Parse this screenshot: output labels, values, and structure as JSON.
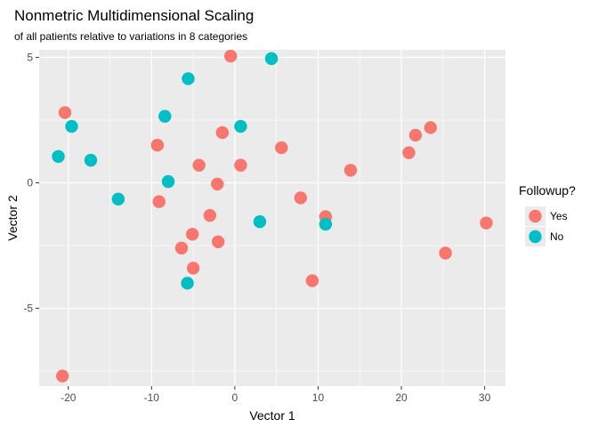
{
  "chart_data": {
    "type": "scatter",
    "title": "Nonmetric Multidimensional Scaling",
    "subtitle": "of all patients relative to variations in 8 categories",
    "xlabel": "Vector 1",
    "ylabel": "Vector 2",
    "xlim": [
      -23.5,
      32.5
    ],
    "ylim": [
      -8.1,
      5.3
    ],
    "x_ticks": [
      -20,
      -10,
      0,
      10,
      20,
      30
    ],
    "x_tick_labels": [
      "-20",
      "-10",
      "0",
      "10",
      "20",
      "30"
    ],
    "y_ticks": [
      -5,
      0,
      5
    ],
    "y_tick_labels": [
      "-5",
      "0",
      "5"
    ],
    "grid": true,
    "panel_background": "#ebebeb",
    "legend": {
      "title": "Followup?",
      "position": "right",
      "entries": [
        {
          "label": "Yes",
          "color": "#f8766d"
        },
        {
          "label": "No",
          "color": "#00bfc4"
        }
      ]
    },
    "series": [
      {
        "name": "Yes",
        "color": "#f8766d",
        "points": [
          [
            -0.5,
            5.05
          ],
          [
            -20.4,
            2.8
          ],
          [
            -1.5,
            2.0
          ],
          [
            -9.3,
            1.5
          ],
          [
            -4.3,
            0.7
          ],
          [
            0.7,
            0.7
          ],
          [
            5.6,
            1.4
          ],
          [
            13.9,
            0.5
          ],
          [
            21.7,
            1.9
          ],
          [
            23.5,
            2.2
          ],
          [
            20.9,
            1.2
          ],
          [
            -2.1,
            -0.05
          ],
          [
            -9.1,
            -0.75
          ],
          [
            7.9,
            -0.6
          ],
          [
            -3.0,
            -1.3
          ],
          [
            10.9,
            -1.35
          ],
          [
            -5.1,
            -2.05
          ],
          [
            -2.0,
            -2.35
          ],
          [
            -6.4,
            -2.6
          ],
          [
            -5.0,
            -3.4
          ],
          [
            9.3,
            -3.9
          ],
          [
            25.3,
            -2.8
          ],
          [
            30.2,
            -1.6
          ],
          [
            -20.7,
            -7.7
          ]
        ]
      },
      {
        "name": "No",
        "color": "#00bfc4",
        "points": [
          [
            4.4,
            4.95
          ],
          [
            -5.6,
            4.15
          ],
          [
            -8.4,
            2.65
          ],
          [
            0.7,
            2.25
          ],
          [
            -19.6,
            2.25
          ],
          [
            -21.2,
            1.05
          ],
          [
            -17.3,
            0.9
          ],
          [
            -8.0,
            0.05
          ],
          [
            -14.0,
            -0.65
          ],
          [
            3.0,
            -1.55
          ],
          [
            10.9,
            -1.65
          ],
          [
            -5.7,
            -4.0
          ]
        ]
      }
    ]
  }
}
